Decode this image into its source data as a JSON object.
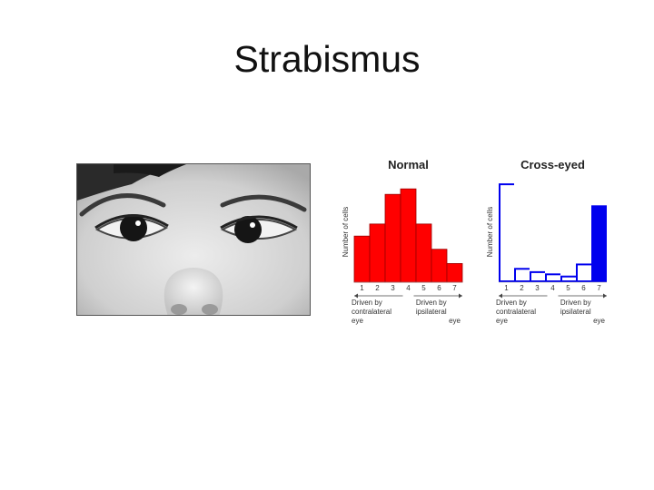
{
  "slide": {
    "title": "Strabismus"
  },
  "chart_data": [
    {
      "type": "bar",
      "title": "Normal",
      "ylabel": "Number of cells",
      "categories": [
        "1",
        "2",
        "3",
        "4",
        "5",
        "6",
        "7"
      ],
      "values": [
        4.2,
        5.3,
        8.0,
        8.5,
        5.3,
        3.0,
        1.7
      ],
      "ylim": [
        0,
        10
      ],
      "color": "#ff0000",
      "edge": "#990000",
      "fill_style": "solid",
      "caption_left": [
        "Driven by",
        "contralateral",
        "eye"
      ],
      "caption_right": [
        "Driven by",
        "ipsilateral",
        "eye"
      ]
    },
    {
      "type": "bar",
      "title": "Cross-eyed",
      "ylabel": "Number of cells",
      "categories": [
        "1",
        "2",
        "3",
        "4",
        "5",
        "6",
        "7"
      ],
      "values": [
        9.0,
        1.3,
        1.0,
        0.8,
        0.6,
        1.7,
        7.0
      ],
      "ylim": [
        0,
        10
      ],
      "color": "#0000ee",
      "edge": "#0000aa",
      "fill_style": "outline",
      "caption_left": [
        "Driven by",
        "contralateral",
        "eye"
      ],
      "caption_right": [
        "Driven by",
        "ipsilateral",
        "eye"
      ]
    }
  ]
}
